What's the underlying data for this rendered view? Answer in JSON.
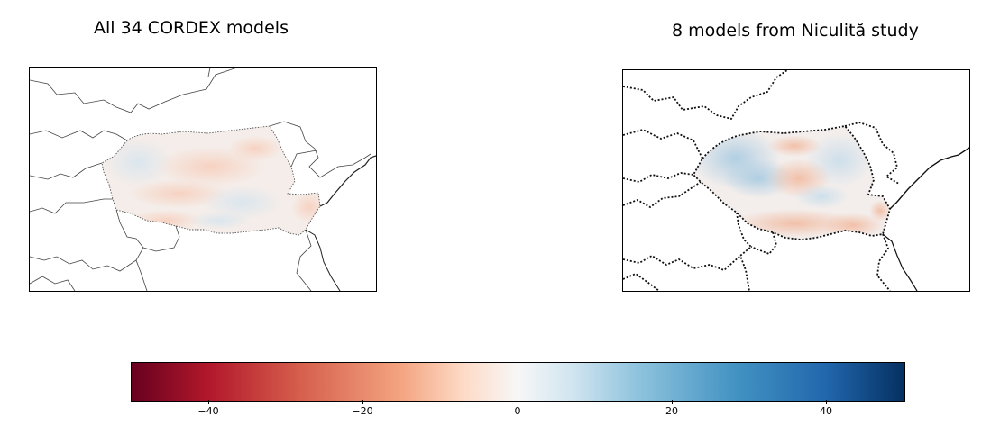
{
  "panels": [
    {
      "title": "All 34 CORDEX models",
      "border_style": "thin-dotted",
      "anomaly_pattern": "weak-mixed"
    },
    {
      "title": "8 models from Niculită study",
      "border_style": "bold-dotted",
      "anomaly_pattern": "blue-north-red-south"
    }
  ],
  "colorbar": {
    "colormap": "RdBu",
    "vmin": -50,
    "vmax": 50,
    "ticks": [
      -40,
      -20,
      0,
      20,
      40
    ],
    "tick_labels": [
      "−40",
      "−20",
      "0",
      "20",
      "40"
    ]
  }
}
